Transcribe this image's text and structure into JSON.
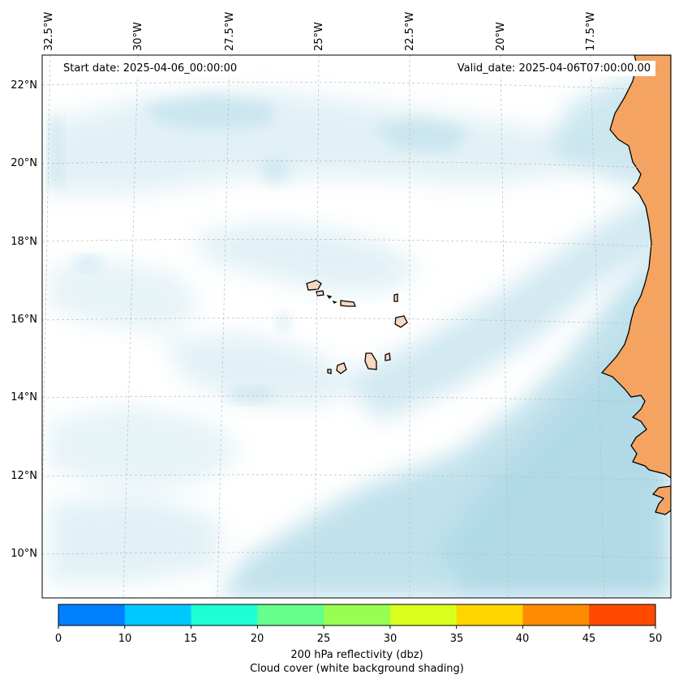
{
  "header": {
    "start_date": "Start date: 2025-04-06_00:00:00",
    "valid_date": "Valid_date: 2025-04-06T07:00:00.00"
  },
  "axes": {
    "longitude_labels": [
      "32.5°W",
      "30°W",
      "27.5°W",
      "25°W",
      "22.5°W",
      "20°W",
      "17.5°W"
    ],
    "latitude_labels": [
      "22°N",
      "20°N",
      "18°N",
      "16°N",
      "14°N",
      "12°N",
      "10°N"
    ]
  },
  "colorbar": {
    "ticks": [
      "0",
      "10",
      "15",
      "20",
      "25",
      "30",
      "35",
      "40",
      "45",
      "50"
    ],
    "colors": [
      "#0080ff",
      "#00c8ff",
      "#1effd6",
      "#64ff8c",
      "#98ff50",
      "#d8ff1e",
      "#ffd500",
      "#ff8c00",
      "#ff4a00"
    ],
    "label": "200 hPa reflectivity (dbz)",
    "sublabel": "Cloud cover (white background shading)"
  },
  "map_colors": {
    "land": "#f4a460",
    "cloud": "#add8e6",
    "sea": "#ffffff",
    "coastline": "#000000"
  }
}
